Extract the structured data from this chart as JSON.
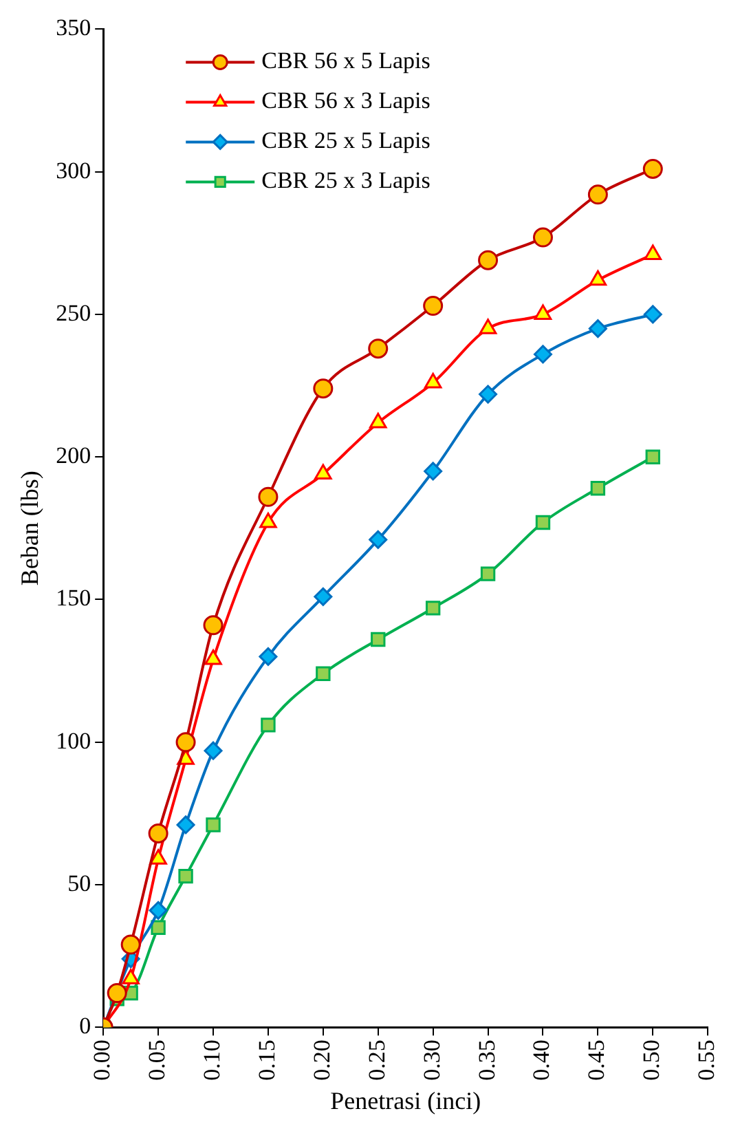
{
  "chart_data": {
    "type": "line",
    "xlabel": "Penetrasi (inci)",
    "ylabel": "Beban (lbs)",
    "x": [
      0,
      0.0125,
      0.025,
      0.05,
      0.075,
      0.1,
      0.15,
      0.2,
      0.25,
      0.3,
      0.35,
      0.4,
      0.45,
      0.5
    ],
    "series": [
      {
        "name": "CBR 56 x 5 Lapis",
        "color": "#c00000",
        "marker": "circle",
        "values": [
          0,
          12,
          29,
          68,
          100,
          141,
          186,
          224,
          238,
          253,
          269,
          277,
          292,
          301
        ]
      },
      {
        "name": "CBR 56 x 3 Lapis",
        "color": "#ff0000",
        "marker": "triangle",
        "values": [
          0,
          null,
          17,
          59,
          94,
          129,
          177,
          194,
          212,
          226,
          245,
          250,
          262,
          271
        ]
      },
      {
        "name": "CBR 25 x 5 Lapis",
        "color": "#0070c0",
        "marker": "diamond",
        "values": [
          0,
          null,
          24,
          41,
          71,
          97,
          130,
          151,
          171,
          195,
          222,
          236,
          245,
          250
        ]
      },
      {
        "name": "CBR 25 x 3 Lapis",
        "color": "#00b050",
        "marker": "square",
        "values": [
          0,
          10,
          12,
          35,
          53,
          71,
          106,
          124,
          136,
          147,
          159,
          177,
          189,
          200
        ]
      }
    ],
    "xlim": [
      0,
      0.55
    ],
    "xticks": [
      {
        "value": 0,
        "label": "0.00"
      },
      {
        "value": 0.05,
        "label": "0.05"
      },
      {
        "value": 0.1,
        "label": "0.10"
      },
      {
        "value": 0.15,
        "label": "0.15"
      },
      {
        "value": 0.2,
        "label": "0.20"
      },
      {
        "value": 0.25,
        "label": "0.25"
      },
      {
        "value": 0.3,
        "label": "0.30"
      },
      {
        "value": 0.35,
        "label": "0.35"
      },
      {
        "value": 0.4,
        "label": "0.40"
      },
      {
        "value": 0.45,
        "label": "0.45"
      },
      {
        "value": 0.5,
        "label": "0.50"
      },
      {
        "value": 0.55,
        "label": "0.55"
      }
    ],
    "ylim": [
      0,
      350
    ],
    "yticks": [
      0,
      50,
      100,
      150,
      200,
      250,
      300,
      350
    ],
    "grid": false,
    "legend": "top left",
    "line_style": "solid"
  }
}
